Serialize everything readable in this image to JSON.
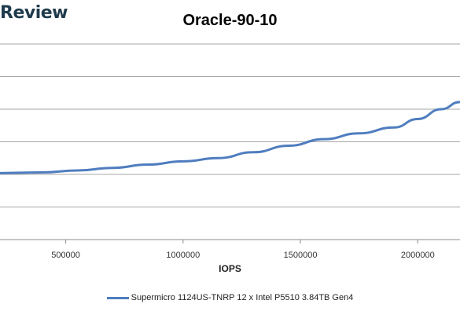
{
  "brand": {
    "name": "Review"
  },
  "chart_data": {
    "type": "line",
    "title": "Oracle-90-10",
    "xlabel": "IOPS",
    "ylabel": "",
    "xlim": [
      220000,
      2180000
    ],
    "ylim": [
      0,
      3000
    ],
    "xticks": [
      500000,
      1000000,
      1500000,
      2000000
    ],
    "xtick_labels": [
      "500000",
      "1000000",
      "1500000",
      "2000000"
    ],
    "yticks": [
      0,
      500,
      1000,
      1500,
      2000,
      2500,
      3000
    ],
    "grid": "horizontal",
    "legend": "bottom",
    "series": [
      {
        "name": "Supermicro 1124US-TNRP 12 x Intel P5510 3.84TB Gen4",
        "color": "#4f7dbf",
        "x": [
          220000,
          400000,
          550000,
          700000,
          850000,
          1000000,
          1150000,
          1300000,
          1450000,
          1600000,
          1750000,
          1900000,
          2000000,
          2100000,
          2180000
        ],
        "y": [
          1020,
          1030,
          1060,
          1100,
          1150,
          1200,
          1250,
          1340,
          1440,
          1540,
          1630,
          1720,
          1850,
          2000,
          2110
        ]
      }
    ]
  }
}
